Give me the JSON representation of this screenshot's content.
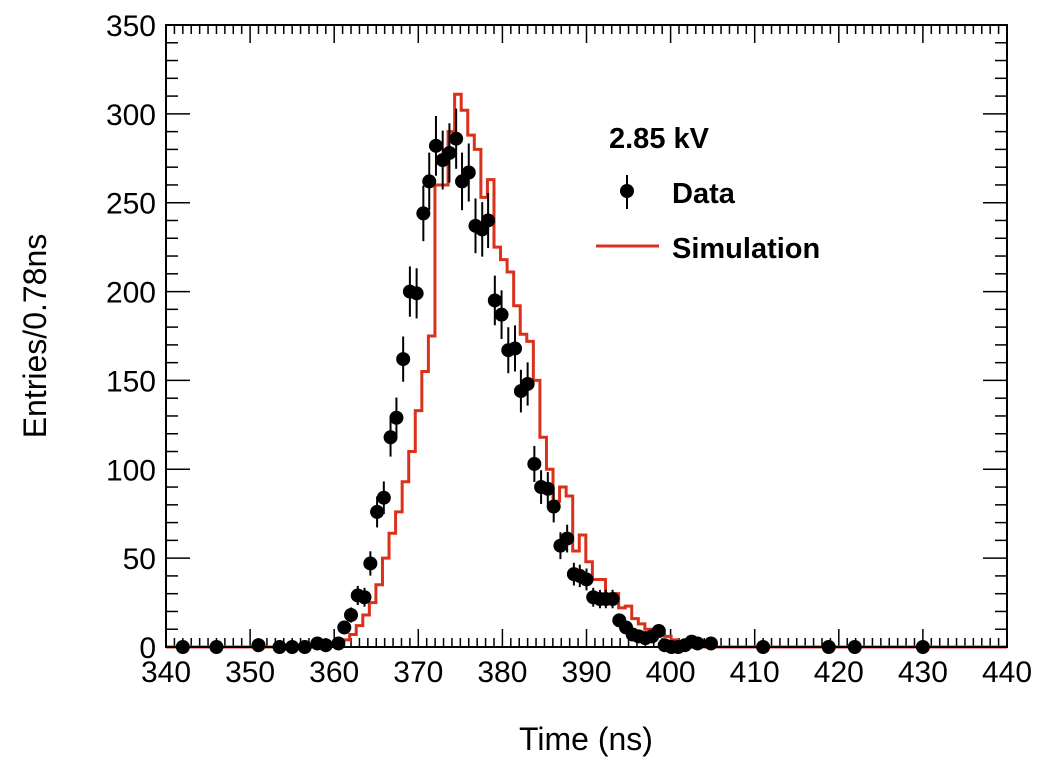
{
  "chart_data": {
    "type": "scatter",
    "xlabel": "Time (ns)",
    "ylabel": "Entries/0.78ns",
    "xlim": [
      340,
      440
    ],
    "ylim": [
      0,
      350
    ],
    "x_ticks": [
      "340",
      "350",
      "360",
      "370",
      "380",
      "390",
      "400",
      "410",
      "420",
      "430",
      "440"
    ],
    "y_ticks": [
      "0",
      "50",
      "100",
      "150",
      "200",
      "250",
      "300",
      "350"
    ],
    "grid": false,
    "legend_position": "top-right",
    "legend_title": "2.85 kV",
    "colors": {
      "data": "#000000",
      "simulation": "#d9311b"
    },
    "series": [
      {
        "name": "Data",
        "style": "points-with-errorbars",
        "points": [
          [
            342.0,
            0
          ],
          [
            346.0,
            0
          ],
          [
            351.0,
            1
          ],
          [
            353.5,
            0
          ],
          [
            355.0,
            0
          ],
          [
            356.5,
            0
          ],
          [
            358.0,
            2
          ],
          [
            359.0,
            1
          ],
          [
            360.5,
            2
          ],
          [
            361.2,
            11
          ],
          [
            362.0,
            18
          ],
          [
            362.8,
            29
          ],
          [
            363.6,
            28
          ],
          [
            364.3,
            47
          ],
          [
            365.1,
            76
          ],
          [
            365.9,
            84
          ],
          [
            366.7,
            118
          ],
          [
            367.4,
            129
          ],
          [
            368.2,
            162
          ],
          [
            369.0,
            200
          ],
          [
            369.8,
            199
          ],
          [
            370.6,
            244
          ],
          [
            371.3,
            262
          ],
          [
            372.1,
            282
          ],
          [
            372.9,
            274
          ],
          [
            373.7,
            278
          ],
          [
            374.5,
            286
          ],
          [
            375.2,
            262
          ],
          [
            376.0,
            267
          ],
          [
            376.8,
            237
          ],
          [
            377.6,
            235
          ],
          [
            378.3,
            240
          ],
          [
            379.1,
            195
          ],
          [
            379.9,
            187
          ],
          [
            380.7,
            167
          ],
          [
            381.5,
            168
          ],
          [
            382.2,
            144
          ],
          [
            383.0,
            148
          ],
          [
            383.8,
            103
          ],
          [
            384.6,
            90
          ],
          [
            385.4,
            89
          ],
          [
            386.1,
            79
          ],
          [
            386.9,
            57
          ],
          [
            387.7,
            61
          ],
          [
            388.5,
            41
          ],
          [
            389.2,
            40
          ],
          [
            390.0,
            38
          ],
          [
            390.8,
            28
          ],
          [
            391.6,
            27
          ],
          [
            392.3,
            27
          ],
          [
            393.1,
            27
          ],
          [
            393.9,
            15
          ],
          [
            394.7,
            11
          ],
          [
            395.5,
            7
          ],
          [
            396.2,
            6
          ],
          [
            397.0,
            5
          ],
          [
            397.8,
            6
          ],
          [
            398.6,
            9
          ],
          [
            399.3,
            1
          ],
          [
            400.1,
            0
          ],
          [
            400.9,
            0
          ],
          [
            401.7,
            1
          ],
          [
            402.5,
            3
          ],
          [
            403.2,
            2
          ],
          [
            404.8,
            2
          ],
          [
            411.0,
            0
          ],
          [
            418.8,
            0
          ],
          [
            421.9,
            0
          ],
          [
            430.0,
            0
          ]
        ]
      },
      {
        "name": "Simulation",
        "style": "step",
        "bin_width": 0.78,
        "x_start": 359.5,
        "values": [
          1,
          2,
          4,
          7,
          12,
          18,
          25,
          35,
          50,
          64,
          76,
          93,
          110,
          133,
          155,
          175,
          260,
          260,
          290,
          311,
          302,
          288,
          280,
          253,
          263,
          225,
          218,
          211,
          192,
          176,
          172,
          150,
          118,
          100,
          82,
          90,
          85,
          54,
          63,
          48,
          38,
          38,
          27,
          30,
          22,
          23,
          16,
          13,
          10,
          9,
          7,
          6,
          4,
          3,
          2,
          1,
          1,
          0
        ]
      }
    ]
  }
}
